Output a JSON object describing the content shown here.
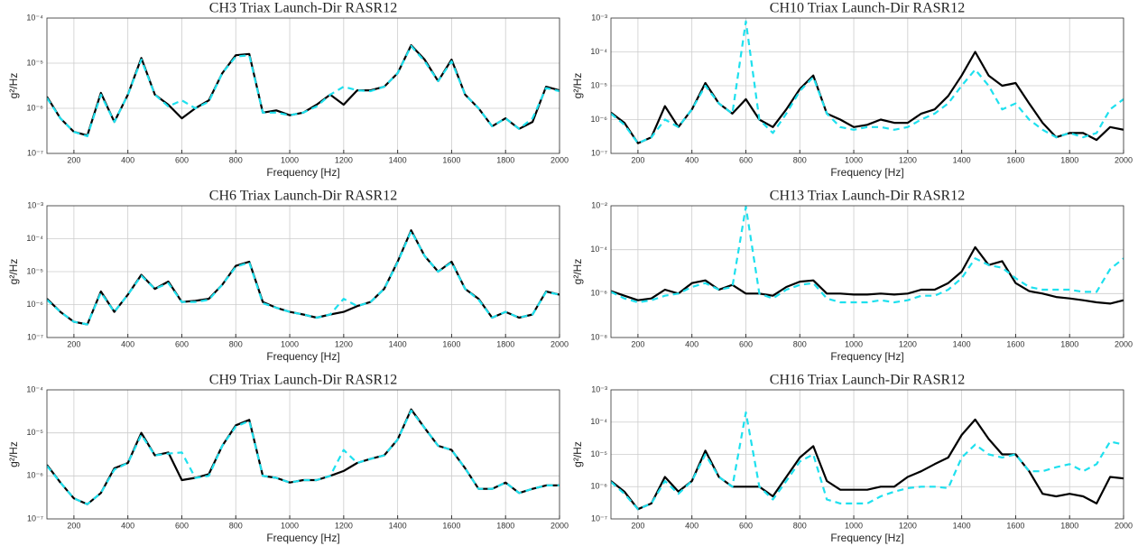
{
  "chart_data": [
    {
      "type": "line",
      "title": "CH3 Triax Launch-Dir RASR12",
      "xlabel": "Frequency [Hz]",
      "ylabel": "g²/Hz",
      "log_y": true,
      "grid": true,
      "x": [
        100,
        150,
        200,
        250,
        300,
        350,
        400,
        450,
        500,
        550,
        600,
        650,
        700,
        750,
        800,
        850,
        900,
        950,
        1000,
        1050,
        1100,
        1150,
        1200,
        1250,
        1300,
        1350,
        1400,
        1450,
        1500,
        1550,
        1600,
        1650,
        1700,
        1750,
        1800,
        1850,
        1900,
        1950,
        2000
      ],
      "xlim": [
        100,
        2000
      ],
      "xticks": [
        200,
        400,
        600,
        800,
        1000,
        1200,
        1400,
        1600,
        1800,
        2000
      ],
      "ylim": [
        1e-07,
        0.0001
      ],
      "yticks": [
        {
          "value": 1e-07,
          "label": "10⁻⁷"
        },
        {
          "value": 1e-06,
          "label": "10⁻⁶"
        },
        {
          "value": 1e-05,
          "label": "10⁻⁵"
        },
        {
          "value": 0.0001,
          "label": "10⁻⁴"
        }
      ],
      "series": [
        {
          "color": "#000000",
          "dash": false,
          "values": [
            1.8e-06,
            6e-07,
            3e-07,
            2.5e-07,
            2.2e-06,
            5e-07,
            2e-06,
            1.3e-05,
            2e-06,
            1.2e-06,
            6e-07,
            1e-06,
            1.5e-06,
            6e-06,
            1.5e-05,
            1.6e-05,
            8e-07,
            9e-07,
            7e-07,
            8e-07,
            1.2e-06,
            2e-06,
            1.2e-06,
            2.5e-06,
            2.5e-06,
            3e-06,
            6e-06,
            2.5e-05,
            1.2e-05,
            4e-06,
            1.2e-05,
            2e-06,
            1e-06,
            4e-07,
            6e-07,
            3.5e-07,
            5e-07,
            3e-06,
            2.5e-06
          ]
        },
        {
          "color": "#1ee0ee",
          "dash": true,
          "values": [
            1.7e-06,
            6e-07,
            3e-07,
            2.4e-07,
            2e-06,
            5e-07,
            2e-06,
            1.2e-05,
            2e-06,
            1.1e-06,
            1.5e-06,
            1e-06,
            1.4e-06,
            6e-06,
            1.4e-05,
            1.5e-05,
            8e-07,
            8e-07,
            7e-07,
            8e-07,
            1.1e-06,
            2e-06,
            3e-06,
            2.5e-06,
            2.4e-06,
            3e-06,
            6e-06,
            2.4e-05,
            1.1e-05,
            4e-06,
            1.1e-05,
            2e-06,
            1e-06,
            4e-07,
            6e-07,
            3.5e-07,
            6e-07,
            2.8e-06,
            2.4e-06
          ]
        }
      ]
    },
    {
      "type": "line",
      "title": "CH10 Triax Launch-Dir RASR12",
      "xlabel": "Frequency [Hz]",
      "ylabel": "g²/Hz",
      "log_y": true,
      "grid": true,
      "x": [
        100,
        150,
        200,
        250,
        300,
        350,
        400,
        450,
        500,
        550,
        600,
        650,
        700,
        750,
        800,
        850,
        900,
        950,
        1000,
        1050,
        1100,
        1150,
        1200,
        1250,
        1300,
        1350,
        1400,
        1450,
        1500,
        1550,
        1600,
        1650,
        1700,
        1750,
        1800,
        1850,
        1900,
        1950,
        2000
      ],
      "xlim": [
        100,
        2000
      ],
      "xticks": [
        200,
        400,
        600,
        800,
        1000,
        1200,
        1400,
        1600,
        1800,
        2000
      ],
      "ylim": [
        1e-07,
        0.001
      ],
      "yticks": [
        {
          "value": 1e-07,
          "label": "10⁻⁷"
        },
        {
          "value": 1e-06,
          "label": "10⁻⁶"
        },
        {
          "value": 1e-05,
          "label": "10⁻⁵"
        },
        {
          "value": 0.0001,
          "label": "10⁻⁴"
        },
        {
          "value": 0.001,
          "label": "10⁻³"
        }
      ],
      "series": [
        {
          "color": "#000000",
          "dash": false,
          "values": [
            1.6e-06,
            8e-07,
            2e-07,
            3e-07,
            2.5e-06,
            6e-07,
            2e-06,
            1.2e-05,
            3e-06,
            1.5e-06,
            4e-06,
            1e-06,
            6e-07,
            2e-06,
            8e-06,
            2e-05,
            1.5e-06,
            1e-06,
            6e-07,
            7e-07,
            1e-06,
            8e-07,
            8e-07,
            1.5e-06,
            2e-06,
            5e-06,
            2e-05,
            0.0001,
            2e-05,
            1e-05,
            1.2e-05,
            3e-06,
            8e-07,
            3e-07,
            4e-07,
            4e-07,
            2.5e-07,
            6e-07,
            5e-07
          ]
        },
        {
          "color": "#1ee0ee",
          "dash": true,
          "values": [
            1.5e-06,
            7e-07,
            2e-07,
            3e-07,
            1e-06,
            6e-07,
            2e-06,
            1e-05,
            3e-06,
            1.5e-06,
            0.0008,
            1e-06,
            4e-07,
            1.5e-06,
            7e-06,
            1.8e-05,
            1.5e-06,
            6e-07,
            5e-07,
            6e-07,
            6e-07,
            5e-07,
            6e-07,
            1e-06,
            1.5e-06,
            3e-06,
            1e-05,
            3e-05,
            1e-05,
            2e-06,
            3e-06,
            1e-06,
            5e-07,
            3e-07,
            4e-07,
            3e-07,
            4e-07,
            2e-06,
            4e-06
          ]
        }
      ]
    },
    {
      "type": "line",
      "title": "CH6 Triax Launch-Dir RASR12",
      "xlabel": "Frequency [Hz]",
      "ylabel": "g²/Hz",
      "log_y": true,
      "grid": true,
      "x": [
        100,
        150,
        200,
        250,
        300,
        350,
        400,
        450,
        500,
        550,
        600,
        650,
        700,
        750,
        800,
        850,
        900,
        950,
        1000,
        1050,
        1100,
        1150,
        1200,
        1250,
        1300,
        1350,
        1400,
        1450,
        1500,
        1550,
        1600,
        1650,
        1700,
        1750,
        1800,
        1850,
        1900,
        1950,
        2000
      ],
      "xlim": [
        100,
        2000
      ],
      "xticks": [
        200,
        400,
        600,
        800,
        1000,
        1200,
        1400,
        1600,
        1800,
        2000
      ],
      "ylim": [
        1e-07,
        0.001
      ],
      "yticks": [
        {
          "value": 1e-07,
          "label": "10⁻⁷"
        },
        {
          "value": 1e-06,
          "label": "10⁻⁶"
        },
        {
          "value": 1e-05,
          "label": "10⁻⁵"
        },
        {
          "value": 0.0001,
          "label": "10⁻⁴"
        },
        {
          "value": 0.001,
          "label": "10⁻³"
        }
      ],
      "series": [
        {
          "color": "#000000",
          "dash": false,
          "values": [
            1.5e-06,
            6e-07,
            3e-07,
            2.5e-07,
            2.5e-06,
            6e-07,
            2e-06,
            8e-06,
            3e-06,
            5e-06,
            1.2e-06,
            1.3e-06,
            1.5e-06,
            4e-06,
            1.5e-05,
            2e-05,
            1.2e-06,
            8e-07,
            6e-07,
            5e-07,
            4e-07,
            5e-07,
            6e-07,
            9e-07,
            1.2e-06,
            3e-06,
            2e-05,
            0.00018,
            3e-05,
            1e-05,
            2e-05,
            3e-06,
            1.5e-06,
            4e-07,
            6e-07,
            4e-07,
            5e-07,
            2.5e-06,
            2e-06
          ]
        },
        {
          "color": "#1ee0ee",
          "dash": true,
          "values": [
            1.4e-06,
            6e-07,
            3e-07,
            2.5e-07,
            2.3e-06,
            6e-07,
            2e-06,
            7.5e-06,
            3e-06,
            4.5e-06,
            1.2e-06,
            1.2e-06,
            1.4e-06,
            4e-06,
            1.4e-05,
            1.9e-05,
            1.1e-06,
            8e-07,
            6e-07,
            5e-07,
            4e-07,
            5e-07,
            1.5e-06,
            9e-07,
            1.2e-06,
            3e-06,
            1.9e-05,
            0.00017,
            3e-05,
            1e-05,
            1.9e-05,
            3e-06,
            1.4e-06,
            4e-07,
            6e-07,
            4e-07,
            5e-07,
            2.4e-06,
            2e-06
          ]
        }
      ]
    },
    {
      "type": "line",
      "title": "CH13 Triax Launch-Dir RASR12",
      "xlabel": "Frequency [Hz]",
      "ylabel": "g²/Hz",
      "log_y": true,
      "grid": true,
      "x": [
        100,
        150,
        200,
        250,
        300,
        350,
        400,
        450,
        500,
        550,
        600,
        650,
        700,
        750,
        800,
        850,
        900,
        950,
        1000,
        1050,
        1100,
        1150,
        1200,
        1250,
        1300,
        1350,
        1400,
        1450,
        1500,
        1550,
        1600,
        1650,
        1700,
        1750,
        1800,
        1850,
        1900,
        1950,
        2000
      ],
      "xlim": [
        100,
        2000
      ],
      "xticks": [
        200,
        400,
        600,
        800,
        1000,
        1200,
        1400,
        1600,
        1800,
        2000
      ],
      "ylim": [
        1e-08,
        0.01
      ],
      "yticks": [
        {
          "value": 1e-08,
          "label": "10⁻⁸"
        },
        {
          "value": 1e-06,
          "label": "10⁻⁶"
        },
        {
          "value": 0.0001,
          "label": "10⁻⁴"
        },
        {
          "value": 0.01,
          "label": "10⁻²"
        }
      ],
      "series": [
        {
          "color": "#000000",
          "dash": false,
          "values": [
            1.3e-06,
            8e-07,
            5e-07,
            6e-07,
            1.5e-06,
            1e-06,
            3e-06,
            4e-06,
            1.5e-06,
            2.5e-06,
            1e-06,
            1e-06,
            8e-07,
            2e-06,
            3.5e-06,
            4e-06,
            1e-06,
            1e-06,
            9e-07,
            9e-07,
            1e-06,
            9e-07,
            1e-06,
            1.5e-06,
            1.5e-06,
            3e-06,
            1e-05,
            0.00013,
            2e-05,
            3e-05,
            3e-06,
            1.3e-06,
            1e-06,
            7e-07,
            6e-07,
            5e-07,
            4e-07,
            3.5e-07,
            5e-07
          ]
        },
        {
          "color": "#1ee0ee",
          "dash": true,
          "values": [
            1.2e-06,
            6e-07,
            4e-07,
            5e-07,
            8e-07,
            1e-06,
            2e-06,
            3e-06,
            1.5e-06,
            2e-06,
            0.009,
            1e-06,
            6e-07,
            1.5e-06,
            2.5e-06,
            3e-06,
            6e-07,
            4e-07,
            4e-07,
            4e-07,
            5e-07,
            4e-07,
            5e-07,
            8e-07,
            8e-07,
            1.5e-06,
            5e-06,
            4e-05,
            2e-05,
            1.5e-05,
            5e-06,
            2e-06,
            1.5e-06,
            1.5e-06,
            1.5e-06,
            1.2e-06,
            1.2e-06,
            1.3e-05,
            4e-05
          ]
        }
      ]
    },
    {
      "type": "line",
      "title": "CH9 Triax Launch-Dir RASR12",
      "xlabel": "Frequency [Hz]",
      "ylabel": "g²/Hz",
      "log_y": true,
      "grid": true,
      "x": [
        100,
        150,
        200,
        250,
        300,
        350,
        400,
        450,
        500,
        550,
        600,
        650,
        700,
        750,
        800,
        850,
        900,
        950,
        1000,
        1050,
        1100,
        1150,
        1200,
        1250,
        1300,
        1350,
        1400,
        1450,
        1500,
        1550,
        1600,
        1650,
        1700,
        1750,
        1800,
        1850,
        1900,
        1950,
        2000
      ],
      "xlim": [
        100,
        2000
      ],
      "xticks": [
        200,
        400,
        600,
        800,
        1000,
        1200,
        1400,
        1600,
        1800,
        2000
      ],
      "ylim": [
        1e-07,
        0.0001
      ],
      "yticks": [
        {
          "value": 1e-07,
          "label": "10⁻⁷"
        },
        {
          "value": 1e-06,
          "label": "10⁻⁶"
        },
        {
          "value": 1e-05,
          "label": "10⁻⁵"
        },
        {
          "value": 0.0001,
          "label": "10⁻⁴"
        }
      ],
      "series": [
        {
          "color": "#000000",
          "dash": false,
          "values": [
            1.8e-06,
            7e-07,
            3e-07,
            2.2e-07,
            4e-07,
            1.5e-06,
            2e-06,
            1e-05,
            3e-06,
            3.5e-06,
            8e-07,
            9e-07,
            1.1e-06,
            5e-06,
            1.5e-05,
            2e-05,
            1e-06,
            9e-07,
            7e-07,
            8e-07,
            8e-07,
            1e-06,
            1.3e-06,
            2e-06,
            2.5e-06,
            3e-06,
            7e-06,
            3.5e-05,
            1.3e-05,
            5e-06,
            4e-06,
            1.5e-06,
            5e-07,
            5e-07,
            7e-07,
            4e-07,
            5e-07,
            6e-07,
            6e-07
          ]
        },
        {
          "color": "#1ee0ee",
          "dash": true,
          "values": [
            1.7e-06,
            7e-07,
            3e-07,
            2.2e-07,
            4e-07,
            1.4e-06,
            2e-06,
            9e-06,
            3e-06,
            3.3e-06,
            3.5e-06,
            9e-07,
            1e-06,
            5e-06,
            1.4e-05,
            1.9e-05,
            1e-06,
            9e-07,
            7e-07,
            8e-07,
            8e-07,
            1e-06,
            4e-06,
            2e-06,
            2.5e-06,
            3e-06,
            7e-06,
            3.3e-05,
            1.3e-05,
            5e-06,
            4e-06,
            1.5e-06,
            5e-07,
            5e-07,
            7e-07,
            4e-07,
            5e-07,
            6e-07,
            6e-07
          ]
        }
      ]
    },
    {
      "type": "line",
      "title": "CH16 Triax Launch-Dir RASR12",
      "xlabel": "Frequency [Hz]",
      "ylabel": "g²/Hz",
      "log_y": true,
      "grid": true,
      "x": [
        100,
        150,
        200,
        250,
        300,
        350,
        400,
        450,
        500,
        550,
        600,
        650,
        700,
        750,
        800,
        850,
        900,
        950,
        1000,
        1050,
        1100,
        1150,
        1200,
        1250,
        1300,
        1350,
        1400,
        1450,
        1500,
        1550,
        1600,
        1650,
        1700,
        1750,
        1800,
        1850,
        1900,
        1950,
        2000
      ],
      "xlim": [
        100,
        2000
      ],
      "xticks": [
        200,
        400,
        600,
        800,
        1000,
        1200,
        1400,
        1600,
        1800,
        2000
      ],
      "ylim": [
        1e-07,
        0.001
      ],
      "yticks": [
        {
          "value": 1e-07,
          "label": "10⁻⁷"
        },
        {
          "value": 1e-06,
          "label": "10⁻⁶"
        },
        {
          "value": 1e-05,
          "label": "10⁻⁵"
        },
        {
          "value": 0.0001,
          "label": "10⁻⁴"
        },
        {
          "value": 0.001,
          "label": "10⁻³"
        }
      ],
      "series": [
        {
          "color": "#000000",
          "dash": false,
          "values": [
            1.5e-06,
            7e-07,
            2e-07,
            3e-07,
            2e-06,
            7e-07,
            1.5e-06,
            1.3e-05,
            2e-06,
            1e-06,
            1e-06,
            1e-06,
            5e-07,
            2e-06,
            8e-06,
            1.8e-05,
            1.5e-06,
            8e-07,
            8e-07,
            8e-07,
            1e-06,
            1e-06,
            2e-06,
            3e-06,
            5e-06,
            8e-06,
            4e-05,
            0.00012,
            3e-05,
            1e-05,
            1e-05,
            3e-06,
            6e-07,
            5e-07,
            6e-07,
            5e-07,
            3e-07,
            2e-06,
            1.8e-06
          ]
        },
        {
          "color": "#1ee0ee",
          "dash": true,
          "values": [
            1.4e-06,
            6e-07,
            2e-07,
            3e-07,
            1.5e-06,
            6e-07,
            1.5e-06,
            1e-05,
            2e-06,
            1e-06,
            0.0002,
            1e-06,
            4e-07,
            1.5e-06,
            6e-06,
            1e-05,
            4e-07,
            3e-07,
            3e-07,
            3e-07,
            5e-07,
            7e-07,
            9e-07,
            1e-06,
            1e-06,
            9e-07,
            8e-06,
            2e-05,
            1e-05,
            8e-06,
            1e-05,
            3e-06,
            3e-06,
            4e-06,
            5e-06,
            3e-06,
            5e-06,
            2.5e-05,
            2e-05
          ]
        }
      ]
    }
  ]
}
